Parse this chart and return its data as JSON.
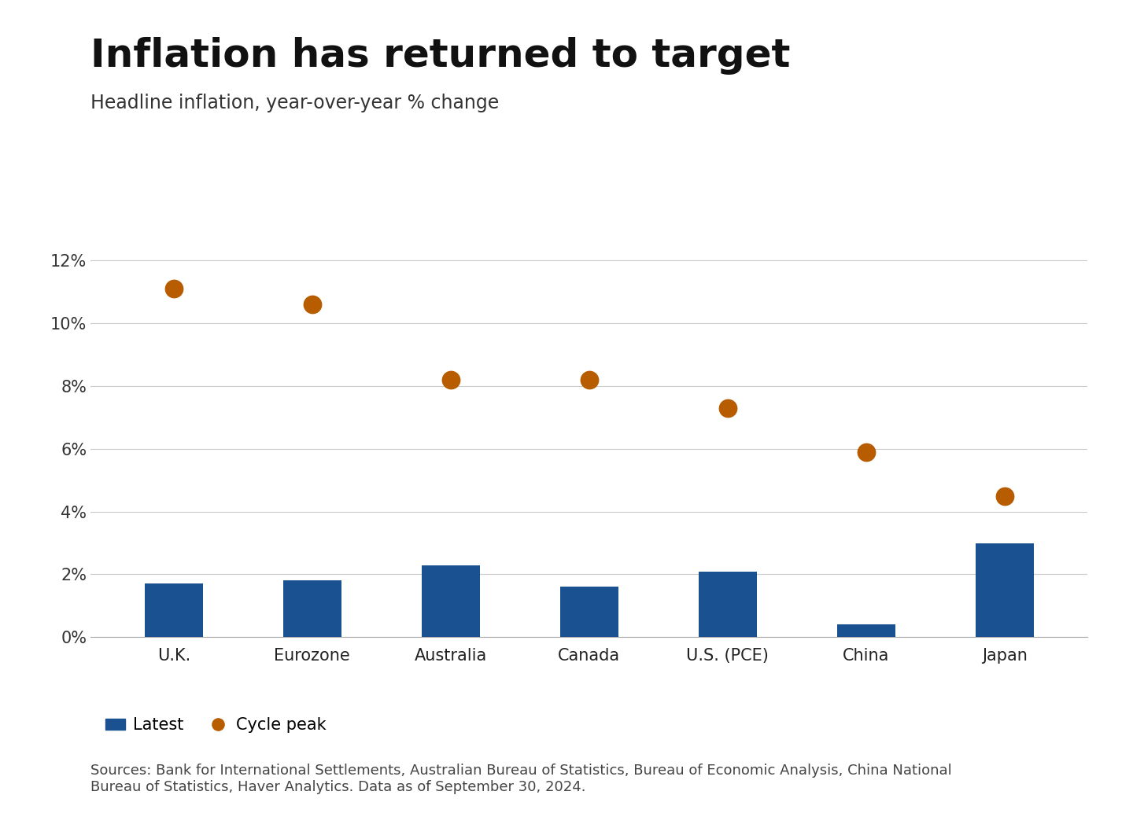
{
  "title": "Inflation has returned to target",
  "subtitle": "Headline inflation, year-over-year % change",
  "categories": [
    "U.K.",
    "Eurozone",
    "Australia",
    "Canada",
    "U.S. (PCE)",
    "China",
    "Japan"
  ],
  "latest_values": [
    1.7,
    1.8,
    2.3,
    1.6,
    2.1,
    0.4,
    3.0
  ],
  "cycle_peak_values": [
    11.1,
    10.6,
    8.2,
    8.2,
    7.3,
    5.9,
    4.5
  ],
  "bar_color": "#1a5190",
  "dot_color": "#b85c00",
  "ylim": [
    0,
    13
  ],
  "yticks": [
    0,
    2,
    4,
    6,
    8,
    10,
    12
  ],
  "ytick_labels": [
    "0%",
    "2%",
    "4%",
    "6%",
    "8%",
    "10%",
    "12%"
  ],
  "legend_latest": "Latest",
  "legend_peak": "Cycle peak",
  "source_text": "Sources: Bank for International Settlements, Australian Bureau of Statistics, Bureau of Economic Analysis, China National\nBureau of Statistics, Haver Analytics. Data as of September 30, 2024.",
  "background_color": "#ffffff",
  "title_fontsize": 36,
  "subtitle_fontsize": 17,
  "tick_fontsize": 15,
  "label_fontsize": 15,
  "legend_fontsize": 15,
  "source_fontsize": 13
}
